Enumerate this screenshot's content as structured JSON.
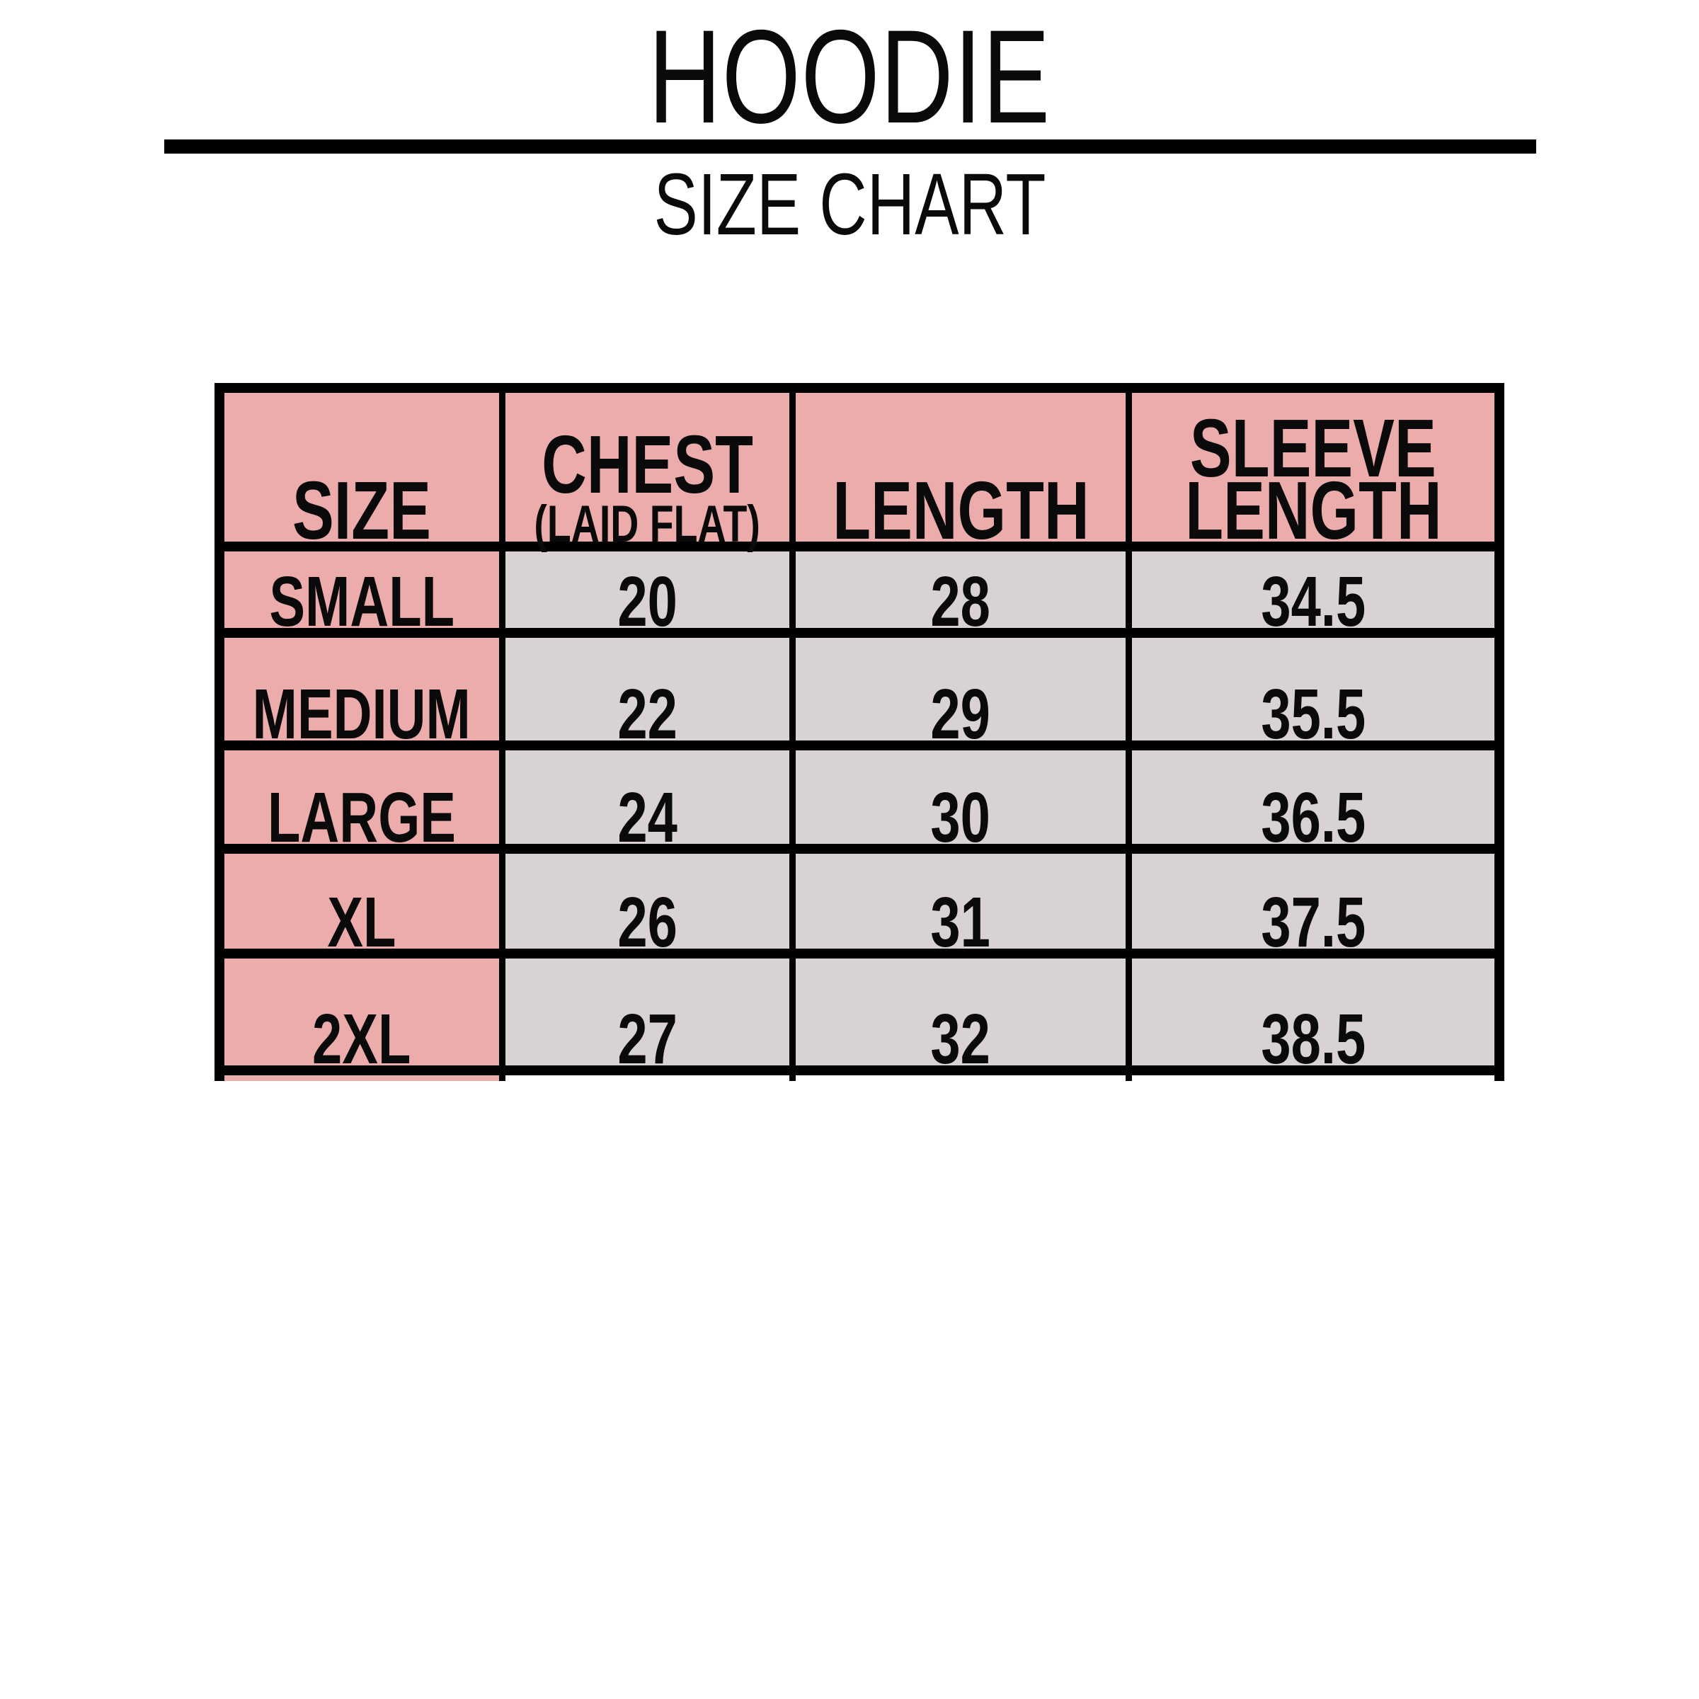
{
  "header": {
    "title": "HOODIE",
    "subtitle": "SIZE CHART"
  },
  "colors": {
    "header_bg": "#ecacac",
    "size_column_bg": "#ecacac",
    "value_cell_bg": "#d9d2d2",
    "border": "#000000",
    "background": "#ffffff",
    "text": "#0a0a0a"
  },
  "table": {
    "headers": [
      {
        "lines": [
          "SIZE"
        ]
      },
      {
        "lines": [
          "CHEST",
          "(LAID FLAT)"
        ]
      },
      {
        "lines": [
          "LENGTH"
        ]
      },
      {
        "lines": [
          "SLEEVE",
          "LENGTH"
        ]
      }
    ],
    "rows": [
      {
        "size": "SMALL",
        "chest": "20",
        "length": "28",
        "sleeve": "34.5"
      },
      {
        "size": "MEDIUM",
        "chest": "22",
        "length": "29",
        "sleeve": "35.5"
      },
      {
        "size": "LARGE",
        "chest": "24",
        "length": "30",
        "sleeve": "36.5"
      },
      {
        "size": "XL",
        "chest": "26",
        "length": "31",
        "sleeve": "37.5"
      },
      {
        "size": "2XL",
        "chest": "27",
        "length": "32",
        "sleeve": "38.5"
      }
    ]
  },
  "chart_data": {
    "type": "table",
    "title": "HOODIE",
    "subtitle": "SIZE CHART",
    "columns": [
      "SIZE",
      "CHEST (LAID FLAT)",
      "LENGTH",
      "SLEEVE LENGTH"
    ],
    "rows": [
      [
        "SMALL",
        20,
        28,
        34.5
      ],
      [
        "MEDIUM",
        22,
        29,
        35.5
      ],
      [
        "LARGE",
        24,
        30,
        36.5
      ],
      [
        "XL",
        26,
        31,
        37.5
      ],
      [
        "2XL",
        27,
        32,
        38.5
      ]
    ]
  }
}
